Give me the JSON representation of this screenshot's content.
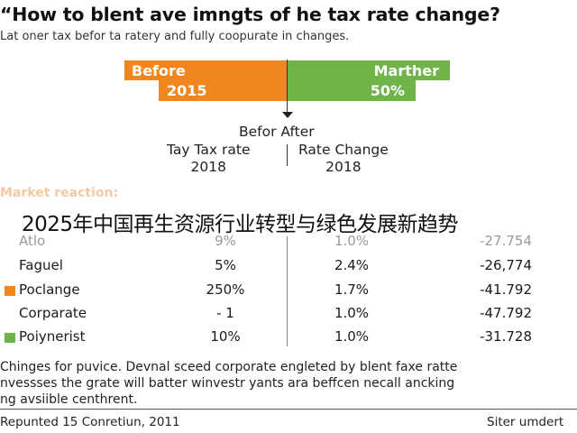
{
  "title": "“How to blent ave imngts of he tax rate change?",
  "subtitle": "Lat oner tax befor ta ratery and fully coopurate in changes.",
  "comparison": {
    "before_label": "Before",
    "before_value": "2015",
    "after_label": "Marther",
    "after_value": "50%",
    "before_color": "#f0871e",
    "after_color": "#6fb349"
  },
  "mid": {
    "heading": "Befor After",
    "left_line1": "Tay Tax rate",
    "left_line2": "2018",
    "right_line1": "Rate Change",
    "right_line2": "2018"
  },
  "market_label": "Market reaction:",
  "overlay_text": "2025年中国再生资源行业转型与绿色发展新趋势",
  "table": {
    "rows": [
      {
        "name": "Atlo",
        "c1": "9%",
        "c2": "1.0%",
        "c3": "-27.754",
        "swatch": ""
      },
      {
        "name": "Faguel",
        "c1": "5%",
        "c2": "2.4%",
        "c3": "-26,774",
        "swatch": ""
      },
      {
        "name": "Poclange",
        "c1": "250%",
        "c2": "1.7%",
        "c3": "-41.792",
        "swatch": "#f0871e"
      },
      {
        "name": "Corparate",
        "c1": "- 1",
        "c2": "1.0%",
        "c3": "-47.792",
        "swatch": ""
      },
      {
        "name": "Poiynerist",
        "c1": "10%",
        "c2": "1.0%",
        "c3": "-31.728",
        "swatch": "#6fb349"
      }
    ]
  },
  "footer": {
    "line1": "Chinges for puvice. Devnal sceed corporate engleted by blent faxe ratte",
    "line2": "nvessses the grate will batter winvestr yants ara beffcen necall ancking",
    "line3": "ng avsiible centhrent."
  },
  "source_left": "Repunted 15 Conretiun, 2011",
  "source_right": "Siter umdert"
}
